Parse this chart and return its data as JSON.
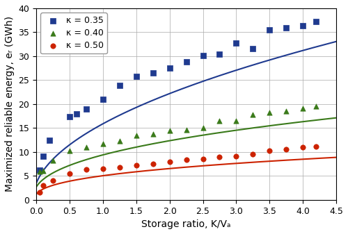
{
  "title": "",
  "xlabel": "Storage ratio, K/Vₐ",
  "ylabel": "Maximized reliable energy, eᵣ (GWh)",
  "xlim": [
    0.0,
    4.5
  ],
  "ylim": [
    0.0,
    40.0
  ],
  "xticks": [
    0.0,
    0.5,
    1.0,
    1.5,
    2.0,
    2.5,
    3.0,
    3.5,
    4.0,
    4.5
  ],
  "yticks": [
    0.0,
    5.0,
    10.0,
    15.0,
    20.0,
    25.0,
    30.0,
    35.0,
    40.0
  ],
  "grid": true,
  "series": [
    {
      "label": "κ = 0.35",
      "color": "#1F3A8F",
      "marker": "s",
      "scatter_x": [
        0.05,
        0.1,
        0.2,
        0.5,
        0.6,
        0.75,
        1.0,
        1.25,
        1.5,
        1.75,
        2.0,
        2.25,
        2.5,
        2.75,
        3.0,
        3.25,
        3.5,
        3.75,
        4.0,
        4.2
      ],
      "scatter_y": [
        6.2,
        9.1,
        12.5,
        17.3,
        18.0,
        18.9,
        21.0,
        23.9,
        25.8,
        26.5,
        27.5,
        28.8,
        30.2,
        30.4,
        32.7,
        31.6,
        35.5,
        36.0,
        36.3,
        37.2
      ],
      "fit_params": {
        "a": 15.5,
        "b": 0.5,
        "c": 0.05
      }
    },
    {
      "label": "κ = 0.40",
      "color": "#3A7A1A",
      "marker": "^",
      "scatter_x": [
        0.05,
        0.1,
        0.25,
        0.5,
        0.75,
        1.0,
        1.25,
        1.5,
        1.75,
        2.0,
        2.25,
        2.5,
        2.75,
        3.0,
        3.25,
        3.5,
        3.75,
        4.0,
        4.2
      ],
      "scatter_y": [
        5.9,
        6.1,
        8.3,
        10.3,
        11.0,
        11.7,
        12.3,
        13.5,
        13.8,
        14.4,
        14.6,
        15.0,
        16.5,
        16.5,
        17.8,
        18.3,
        18.5,
        19.1,
        19.5
      ],
      "fit_params": {
        "a": 9.2,
        "b": 0.41,
        "c": 0.05
      }
    },
    {
      "label": "κ = 0.50",
      "color": "#CC2200",
      "marker": "o",
      "scatter_x": [
        0.05,
        0.1,
        0.25,
        0.5,
        0.75,
        1.0,
        1.25,
        1.5,
        1.75,
        2.0,
        2.25,
        2.5,
        2.75,
        3.0,
        3.25,
        3.5,
        3.75,
        4.0,
        4.2
      ],
      "scatter_y": [
        1.6,
        3.0,
        4.1,
        5.5,
        6.4,
        6.5,
        6.8,
        7.2,
        7.5,
        8.0,
        8.4,
        8.5,
        9.0,
        9.1,
        9.5,
        10.2,
        10.5,
        11.0,
        11.2
      ],
      "fit_params": {
        "a": 5.0,
        "b": 0.38,
        "c": 0.02
      }
    }
  ],
  "background_color": "#ffffff",
  "font_size": 10,
  "legend_loc": "upper left"
}
